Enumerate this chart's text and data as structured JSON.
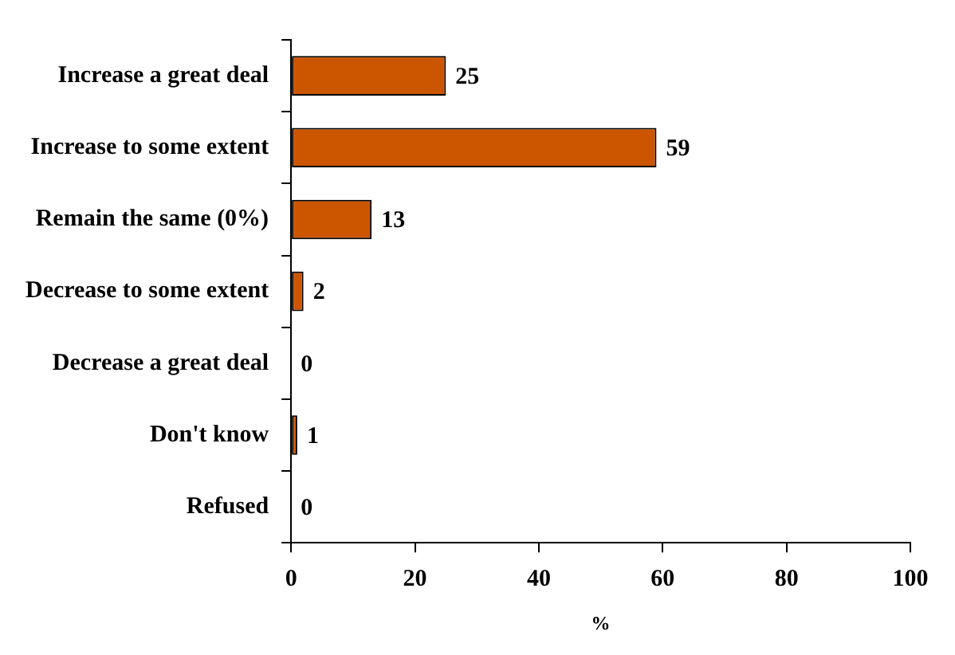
{
  "chart_data": {
    "type": "bar",
    "orientation": "horizontal",
    "categories": [
      "Increase a great deal",
      "Increase to some extent",
      "Remain the same (0%)",
      "Decrease to some extent",
      "Decrease a great deal",
      "Don't know",
      "Refused"
    ],
    "values": [
      25,
      59,
      13,
      2,
      0,
      1,
      0
    ],
    "color": "#cc5500",
    "xlim": [
      0,
      100
    ],
    "xticks": [
      0,
      20,
      40,
      60,
      80,
      100
    ],
    "xlabel": "%",
    "data_labels": true,
    "grid": false,
    "legend": false
  }
}
